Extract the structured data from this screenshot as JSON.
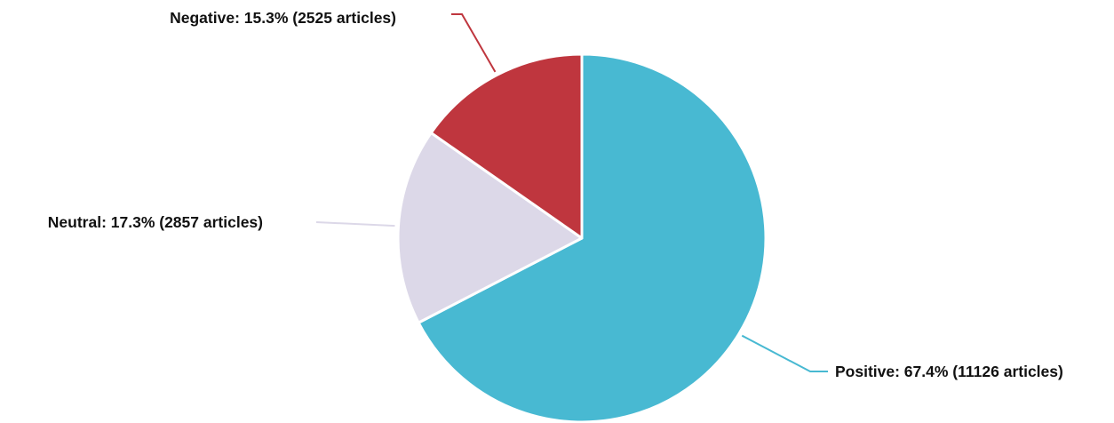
{
  "chart_data": {
    "type": "pie",
    "title": "",
    "slices": [
      {
        "name": "Positive",
        "percent": 67.4,
        "count": 11126,
        "color": "#48b9d2",
        "label": "Positive: 67.4% (11126 articles)"
      },
      {
        "name": "Neutral",
        "percent": 17.3,
        "count": 2857,
        "color": "#dcd8e8",
        "label": "Neutral: 17.3% (2857 articles)"
      },
      {
        "name": "Negative",
        "percent": 15.3,
        "count": 2525,
        "color": "#bf363e",
        "label": "Negative: 15.3% (2525 articles)"
      }
    ],
    "start": "top",
    "direction": "clockwise",
    "legend": "none",
    "label_style": "outside-with-leader-lines"
  }
}
